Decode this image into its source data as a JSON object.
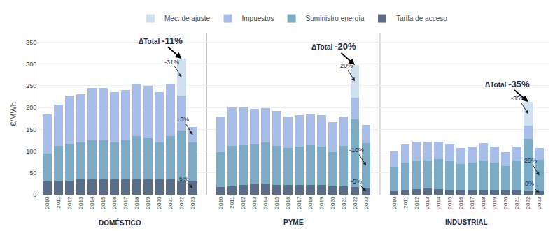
{
  "chart_data": {
    "type": "bar",
    "stacked": true,
    "grid": true,
    "ylabel": "€/MWh",
    "categories": [
      "2010",
      "2011",
      "2012",
      "2013",
      "2014",
      "2015",
      "2016",
      "2017",
      "2018",
      "2019",
      "2020",
      "2021",
      "2022",
      "2023",
      "2010",
      "2011",
      "2012",
      "2013",
      "2014",
      "2015",
      "2016",
      "2017",
      "2018",
      "2019",
      "2020",
      "2021",
      "2022",
      "2023",
      "2010",
      "2011",
      "2012",
      "2013",
      "2014",
      "2015",
      "2016",
      "2017",
      "2018",
      "2019",
      "2020",
      "2021",
      "2022",
      "2023"
    ],
    "category_groups": [
      "DOMÉSTICO",
      "DOMÉSTICO",
      "DOMÉSTICO",
      "DOMÉSTICO",
      "DOMÉSTICO",
      "DOMÉSTICO",
      "DOMÉSTICO",
      "DOMÉSTICO",
      "DOMÉSTICO",
      "DOMÉSTICO",
      "DOMÉSTICO",
      "DOMÉSTICO",
      "DOMÉSTICO",
      "DOMÉSTICO",
      "PYME",
      "PYME",
      "PYME",
      "PYME",
      "PYME",
      "PYME",
      "PYME",
      "PYME",
      "PYME",
      "PYME",
      "PYME",
      "PYME",
      "PYME",
      "PYME",
      "INDUSTRIAL",
      "INDUSTRIAL",
      "INDUSTRIAL",
      "INDUSTRIAL",
      "INDUSTRIAL",
      "INDUSTRIAL",
      "INDUSTRIAL",
      "INDUSTRIAL",
      "INDUSTRIAL",
      "INDUSTRIAL",
      "INDUSTRIAL",
      "INDUSTRIAL",
      "INDUSTRIAL",
      "INDUSTRIAL"
    ],
    "series": [
      {
        "name": "Tarifa de acceso",
        "color": "#5a6e8a",
        "values": [
          30,
          32,
          32,
          35,
          35,
          35,
          35,
          35,
          35,
          35,
          35,
          35,
          32,
          30,
          18,
          20,
          22,
          25,
          25,
          22,
          22,
          22,
          22,
          22,
          20,
          20,
          18,
          16,
          10,
          12,
          13,
          14,
          13,
          12,
          11,
          11,
          11,
          11,
          11,
          11,
          8,
          8
        ]
      },
      {
        "name": "Suministro energía",
        "color": "#7bacc4",
        "values": [
          65,
          80,
          85,
          85,
          90,
          90,
          85,
          90,
          100,
          95,
          85,
          100,
          115,
          90,
          80,
          92,
          92,
          90,
          95,
          90,
          85,
          88,
          92,
          88,
          78,
          92,
          155,
          102,
          52,
          62,
          65,
          65,
          68,
          65,
          60,
          62,
          67,
          62,
          54,
          67,
          120,
          72
        ]
      },
      {
        "name": "Impuestos",
        "color": "#a8bee8",
        "values": [
          90,
          95,
          110,
          110,
          120,
          120,
          115,
          115,
          120,
          120,
          115,
          120,
          80,
          35,
          82,
          88,
          88,
          82,
          78,
          80,
          72,
          72,
          72,
          72,
          68,
          68,
          50,
          42,
          38,
          42,
          44,
          43,
          40,
          40,
          36,
          38,
          40,
          38,
          32,
          32,
          30,
          28
        ]
      },
      {
        "name": "Mec. de ajuste",
        "color": "#cfe0f0",
        "values": [
          0,
          0,
          0,
          0,
          0,
          0,
          0,
          0,
          0,
          0,
          0,
          0,
          85,
          0,
          0,
          0,
          0,
          0,
          0,
          0,
          0,
          0,
          0,
          0,
          0,
          0,
          75,
          0,
          0,
          0,
          0,
          0,
          0,
          0,
          0,
          0,
          0,
          0,
          0,
          0,
          55,
          0
        ]
      }
    ],
    "ylim": [
      0,
      370
    ],
    "yticks": [
      0,
      50,
      100,
      150,
      200,
      250,
      300,
      350
    ],
    "annotations": [
      {
        "text": "-31%",
        "group": "DOMÉSTICO",
        "category": "2022",
        "series": "Mec. de ajuste"
      },
      {
        "text": "+3%",
        "group": "DOMÉSTICO",
        "category": "2023",
        "series": "Impuestos"
      },
      {
        "text": "-5%",
        "group": "DOMÉSTICO",
        "category": "2023",
        "series": "Tarifa de acceso"
      },
      {
        "text": "-20%",
        "group": "PYME",
        "category": "2022",
        "series": "Mec. de ajuste"
      },
      {
        "text": "-10%",
        "group": "PYME",
        "category": "2023",
        "series": "Suministro energía"
      },
      {
        "text": "-5%",
        "group": "PYME",
        "category": "2023",
        "series": "Tarifa de acceso"
      },
      {
        "text": "-35%",
        "group": "INDUSTRIAL",
        "category": "2022",
        "series": "Mec. de ajuste"
      },
      {
        "text": "-29%",
        "group": "INDUSTRIAL",
        "category": "2023",
        "series": "Suministro energía"
      },
      {
        "text": "0%",
        "group": "INDUSTRIAL",
        "category": "2023",
        "series": "Tarifa de acceso"
      },
      {
        "text": "-11%",
        "label": "ΔTotal",
        "group": "DOMÉSTICO",
        "category": "2022"
      },
      {
        "text": "-20%",
        "label": "ΔTotal",
        "group": "PYME",
        "category": "2022"
      },
      {
        "text": "-35%",
        "label": "ΔTotal",
        "group": "INDUSTRIAL",
        "category": "2022"
      }
    ]
  }
}
